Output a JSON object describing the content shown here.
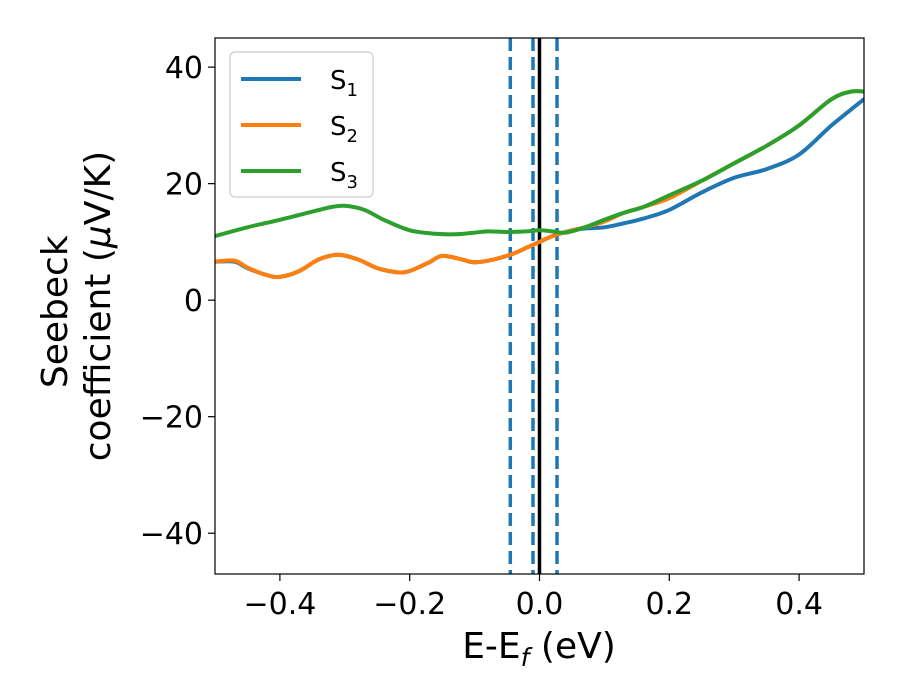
{
  "chart_data": {
    "type": "line",
    "xlabel": {
      "main": "E-E",
      "sub": "f",
      "suffix": " (eV)"
    },
    "ylabel": {
      "line1": "Seebeck",
      "line2_pre": "coefficient  (",
      "line2_mu": "μ",
      "line2_post": "V/K)"
    },
    "xlim": [
      -0.5,
      0.5
    ],
    "ylim": [
      -47,
      45
    ],
    "xticks": [
      -0.4,
      -0.2,
      0.0,
      0.2,
      0.4
    ],
    "xtick_labels": [
      "−0.4",
      "−0.2",
      "0.0",
      "0.2",
      "0.4"
    ],
    "yticks": [
      -40,
      -20,
      0,
      20,
      40
    ],
    "ytick_labels": [
      "−40",
      "−20",
      "0",
      "20",
      "40"
    ],
    "grid": false,
    "legend_position": "top-left",
    "vlines": [
      {
        "x": -0.045,
        "style": "dashed",
        "color": "#1f77b4"
      },
      {
        "x": -0.01,
        "style": "dashed",
        "color": "#1f77b4"
      },
      {
        "x": 0.027,
        "style": "dashed",
        "color": "#1f77b4"
      },
      {
        "x": 0.0,
        "style": "solid",
        "color": "#000000"
      }
    ],
    "series": [
      {
        "name": "S",
        "sub": "1",
        "color": "#1f77b4",
        "x": [
          -0.5,
          -0.47,
          -0.45,
          -0.42,
          -0.4,
          -0.37,
          -0.34,
          -0.31,
          -0.28,
          -0.25,
          -0.22,
          -0.2,
          -0.17,
          -0.15,
          -0.12,
          -0.1,
          -0.07,
          -0.04,
          -0.02,
          0.0,
          0.02,
          0.05,
          0.07,
          0.1,
          0.13,
          0.16,
          0.2,
          0.25,
          0.3,
          0.35,
          0.4,
          0.45,
          0.5
        ],
        "y": [
          6.6,
          6.6,
          5.5,
          4.3,
          4.0,
          5.0,
          7.0,
          7.8,
          7.0,
          5.5,
          4.8,
          5.0,
          6.5,
          7.6,
          7.0,
          6.5,
          7.0,
          8.0,
          9.0,
          10.0,
          11.0,
          12.0,
          12.3,
          12.5,
          13.2,
          14.0,
          15.5,
          18.5,
          21.0,
          22.5,
          25.0,
          30.0,
          34.5
        ]
      },
      {
        "name": "S",
        "sub": "2",
        "color": "#ff7f0e",
        "x": [
          -0.5,
          -0.47,
          -0.45,
          -0.42,
          -0.4,
          -0.37,
          -0.34,
          -0.31,
          -0.28,
          -0.25,
          -0.22,
          -0.2,
          -0.17,
          -0.15,
          -0.12,
          -0.1,
          -0.07,
          -0.04,
          -0.02,
          0.0,
          0.02,
          0.05,
          0.07,
          0.1,
          0.13,
          0.16,
          0.2,
          0.25,
          0.3,
          0.35,
          0.4,
          0.45,
          0.48,
          0.5
        ],
        "y": [
          6.6,
          6.8,
          5.6,
          4.3,
          4.0,
          5.0,
          7.0,
          7.8,
          7.0,
          5.5,
          4.8,
          5.0,
          6.5,
          7.6,
          7.0,
          6.5,
          7.0,
          8.0,
          9.0,
          10.0,
          11.0,
          12.0,
          12.5,
          13.5,
          15.0,
          16.0,
          17.5,
          20.5,
          23.5,
          26.5,
          30.0,
          34.5,
          35.8,
          35.8
        ]
      },
      {
        "name": "S",
        "sub": "3",
        "color": "#2ca02c",
        "x": [
          -0.5,
          -0.45,
          -0.4,
          -0.35,
          -0.32,
          -0.3,
          -0.27,
          -0.24,
          -0.2,
          -0.16,
          -0.13,
          -0.1,
          -0.08,
          -0.05,
          -0.02,
          0.0,
          0.02,
          0.04,
          0.07,
          0.1,
          0.13,
          0.16,
          0.2,
          0.25,
          0.3,
          0.35,
          0.4,
          0.45,
          0.48,
          0.5
        ],
        "y": [
          11.0,
          12.5,
          13.8,
          15.2,
          16.0,
          16.2,
          15.5,
          13.8,
          12.0,
          11.4,
          11.3,
          11.6,
          11.8,
          11.7,
          11.8,
          12.0,
          11.8,
          11.6,
          12.5,
          13.8,
          15.0,
          16.0,
          18.0,
          20.5,
          23.5,
          26.5,
          30.0,
          34.5,
          35.8,
          35.8
        ]
      }
    ]
  }
}
